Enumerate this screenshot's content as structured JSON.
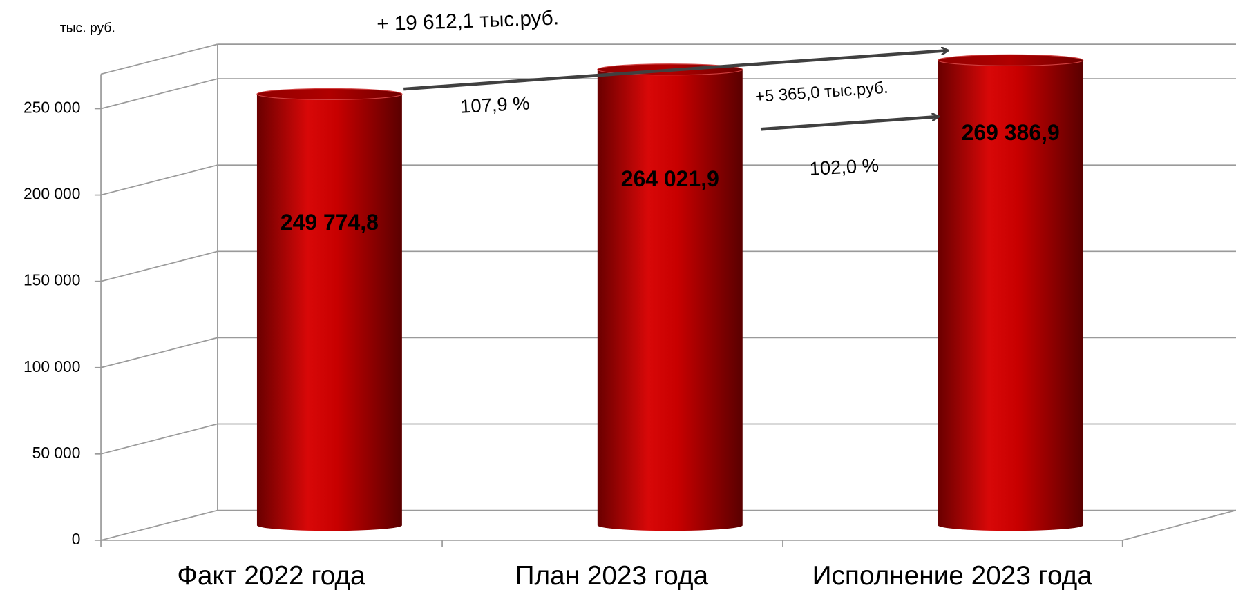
{
  "chart_data": {
    "type": "bar3d",
    "unit_label": "тыс. руб.",
    "categories": [
      "Факт 2022 года",
      "План  2023 года",
      "Исполнение 2023 года"
    ],
    "values": [
      249774.8,
      264021.9,
      269386.9
    ],
    "value_labels": [
      "249 774,8",
      "264 021,9",
      "269 386,9"
    ],
    "color": "#c00000",
    "ylim": [
      0,
      270000
    ],
    "yticks": [
      0,
      {
        "value": 50000,
        "label": "50 000"
      },
      {
        "value": 100000,
        "label": "100 000"
      },
      {
        "value": 150000,
        "label": "150 000"
      },
      {
        "value": 200000,
        "label": "200 000"
      },
      {
        "value": 250000,
        "label": "250 000"
      }
    ],
    "grid": true,
    "annotations": [
      "+ 19 612,1 тыс.руб.",
      "107,9 %",
      "+5 365,0 тыс.руб.",
      "102,0 %"
    ]
  }
}
